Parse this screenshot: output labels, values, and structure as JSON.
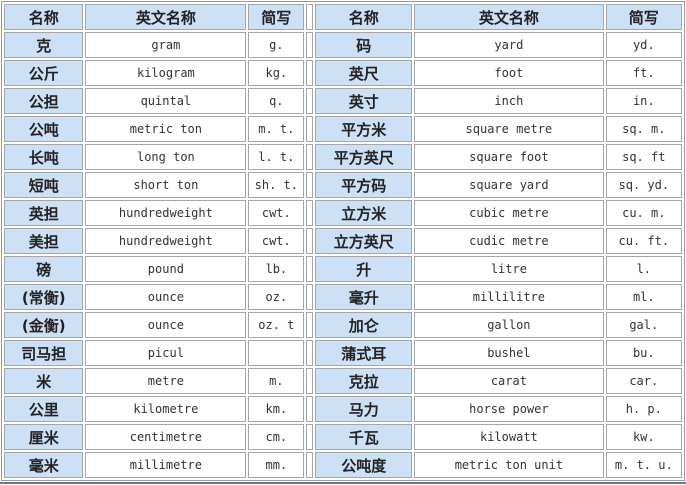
{
  "table": {
    "headers": {
      "name": "名称",
      "english": "英文名称",
      "abbr": "简写"
    },
    "left_rows": [
      {
        "name": "克",
        "english": "gram",
        "abbr": "g."
      },
      {
        "name": "公斤",
        "english": "kilogram",
        "abbr": "kg."
      },
      {
        "name": "公担",
        "english": "quintal",
        "abbr": "q."
      },
      {
        "name": "公吨",
        "english": "metric ton",
        "abbr": "m. t."
      },
      {
        "name": "长吨",
        "english": "long ton",
        "abbr": "l. t."
      },
      {
        "name": "短吨",
        "english": "short ton",
        "abbr": "sh. t."
      },
      {
        "name": "英担",
        "english": "hundredweight",
        "abbr": "cwt."
      },
      {
        "name": "美担",
        "english": "hundredweight",
        "abbr": "cwt."
      },
      {
        "name": "磅",
        "english": "pound",
        "abbr": "lb."
      },
      {
        "name": "(常衡)",
        "english": "ounce",
        "abbr": "oz."
      },
      {
        "name": "(金衡)",
        "english": "ounce",
        "abbr": "oz. t"
      },
      {
        "name": "司马担",
        "english": "picul",
        "abbr": ""
      },
      {
        "name": "米",
        "english": "metre",
        "abbr": "m."
      },
      {
        "name": "公里",
        "english": "kilometre",
        "abbr": "km."
      },
      {
        "name": "厘米",
        "english": "centimetre",
        "abbr": "cm."
      },
      {
        "name": "毫米",
        "english": "millimetre",
        "abbr": "mm."
      }
    ],
    "right_rows": [
      {
        "name": "码",
        "english": "yard",
        "abbr": "yd."
      },
      {
        "name": "英尺",
        "english": "foot",
        "abbr": "ft."
      },
      {
        "name": "英寸",
        "english": "inch",
        "abbr": "in."
      },
      {
        "name": "平方米",
        "english": "square metre",
        "abbr": "sq. m."
      },
      {
        "name": "平方英尺",
        "english": "square foot",
        "abbr": "sq. ft"
      },
      {
        "name": "平方码",
        "english": "square yard",
        "abbr": "sq. yd."
      },
      {
        "name": "立方米",
        "english": "cubic metre",
        "abbr": "cu. m."
      },
      {
        "name": "立方英尺",
        "english": "cudic metre",
        "abbr": "cu. ft."
      },
      {
        "name": "升",
        "english": "litre",
        "abbr": "l."
      },
      {
        "name": "毫升",
        "english": "millilitre",
        "abbr": "ml."
      },
      {
        "name": "加仑",
        "english": "gallon",
        "abbr": "gal."
      },
      {
        "name": "蒲式耳",
        "english": "bushel",
        "abbr": "bu."
      },
      {
        "name": "克拉",
        "english": "carat",
        "abbr": "car."
      },
      {
        "name": "马力",
        "english": "horse power",
        "abbr": "h. p."
      },
      {
        "name": "千瓦",
        "english": "kilowatt",
        "abbr": "kw."
      },
      {
        "name": "公吨度",
        "english": "metric ton unit",
        "abbr": "m. t. u."
      }
    ]
  },
  "colors": {
    "header_bg": "#cce0f6",
    "cell_border": "#a6a6a6",
    "outer_border": "#9a9a9a",
    "bottom_rule": "#64799c"
  }
}
